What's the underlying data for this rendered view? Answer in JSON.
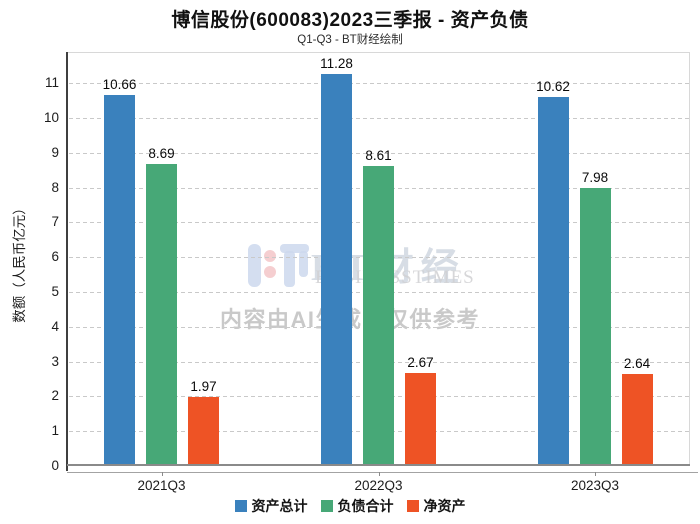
{
  "chart_data": {
    "type": "bar",
    "title": "博信股份(600083)2023三季报 - 资产负债",
    "subtitle": "Q1-Q3 - BT财经绘制",
    "categories": [
      "2021Q3",
      "2022Q3",
      "2023Q3"
    ],
    "series": [
      {
        "name": "资产总计",
        "color": "#3a81bd",
        "values": [
          10.66,
          11.28,
          10.62
        ]
      },
      {
        "name": "负债合计",
        "color": "#47a877",
        "values": [
          8.69,
          8.61,
          7.98
        ]
      },
      {
        "name": "净资产",
        "color": "#ee5325",
        "values": [
          1.97,
          2.67,
          2.64
        ]
      }
    ],
    "xlabel": "",
    "ylabel": "数额（人民币亿元）",
    "ylim": [
      0,
      11.9
    ],
    "yticks": [
      0,
      1,
      2,
      3,
      4,
      5,
      6,
      7,
      8,
      9,
      10,
      11
    ],
    "grid": "horizontal-dashed",
    "value_labels": true,
    "legend_position": "bottom"
  },
  "watermark": {
    "brand": "BT财经",
    "brand_sub": "BUSINESSTIMES",
    "ai_notice": "内容由AI生成，仅供参考",
    "logo_blue": "#ccd8ed",
    "logo_pink": "#f3c6c8"
  }
}
